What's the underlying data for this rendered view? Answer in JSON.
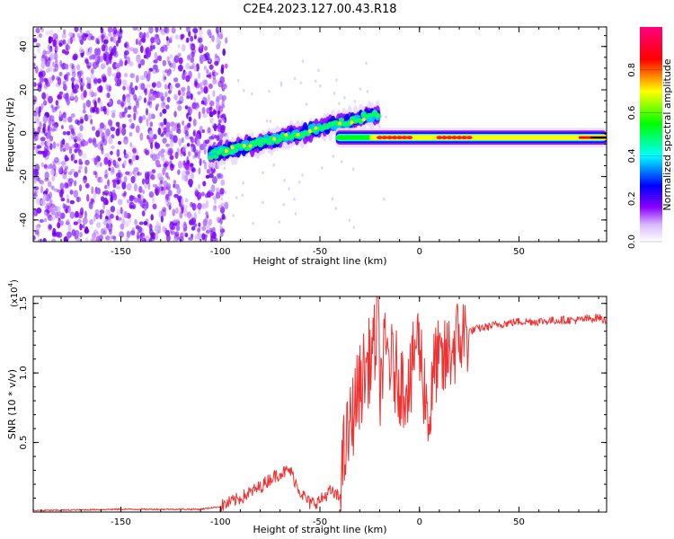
{
  "title": "C2E4.2023.127.00.43.R18",
  "chart_data": [
    {
      "type": "heatmap",
      "xlabel": "Height of straight line (km)",
      "ylabel": "Frequency (Hz)",
      "xlim": [
        -194,
        94
      ],
      "ylim": [
        -50,
        49
      ],
      "xticks": [
        -150,
        -100,
        -50,
        0,
        50
      ],
      "yticks": [
        -40,
        -20,
        0,
        20,
        40
      ],
      "colorbar": {
        "label": "Normalized spectral amplitude",
        "range": [
          0.0,
          1.0
        ],
        "ticks": [
          "0.0",
          "0.2",
          "0.4",
          "0.6",
          "0.8"
        ],
        "colors": [
          "#ffffff",
          "#8a00ff",
          "#0000ff",
          "#00ffff",
          "#00ff00",
          "#ffff00",
          "#ff0000",
          "#ff0080"
        ]
      },
      "features": {
        "noise_region_x": [
          -194,
          -105
        ],
        "rising_band": {
          "x": [
            -105,
            -20
          ],
          "frequency": [
            -10,
            9
          ]
        },
        "steady_band": {
          "x": [
            -42,
            94
          ],
          "frequency": -2,
          "peak_x": [
            -20,
            25
          ]
        }
      },
      "grid": false
    },
    {
      "type": "line",
      "xlabel": "Height of straight line (km)",
      "ylabel": "SNR (10 * v/v)",
      "yscale_label": "(x10",
      "yscale_exp": "4",
      "yscale_close": ")",
      "xlim": [
        -194,
        94
      ],
      "ylim": [
        0,
        1.55
      ],
      "xticks": [
        -150,
        -100,
        -50,
        0,
        50
      ],
      "yticks": [
        "0.5",
        "1.0",
        "1.5"
      ],
      "color": "#ee3333",
      "x": [
        -194,
        -150,
        -110,
        -100,
        -90,
        -80,
        -75,
        -70,
        -65,
        -60,
        -55,
        -50,
        -45,
        -40,
        -38,
        -35,
        -32,
        -30,
        -28,
        -26,
        -24,
        -22,
        -21,
        -20,
        -18,
        -16,
        -14,
        -12,
        -10,
        -8,
        -6,
        -4,
        -2,
        0,
        2,
        5,
        8,
        10,
        12,
        15,
        20,
        25,
        30,
        40,
        50,
        60,
        70,
        80,
        85,
        90,
        94
      ],
      "y": [
        0.01,
        0.02,
        0.02,
        0.04,
        0.1,
        0.18,
        0.24,
        0.28,
        0.3,
        0.15,
        0.06,
        0.08,
        0.15,
        0.1,
        0.4,
        0.6,
        0.8,
        0.9,
        1.0,
        1.05,
        1.15,
        1.2,
        1.55,
        0.9,
        1.1,
        1.15,
        1.05,
        1.0,
        0.95,
        0.9,
        0.95,
        0.92,
        1.25,
        1.2,
        0.95,
        0.65,
        1.1,
        1.05,
        1.05,
        1.15,
        1.25,
        1.3,
        1.32,
        1.35,
        1.37,
        1.37,
        1.38,
        1.38,
        1.39,
        1.4,
        1.37
      ]
    }
  ]
}
